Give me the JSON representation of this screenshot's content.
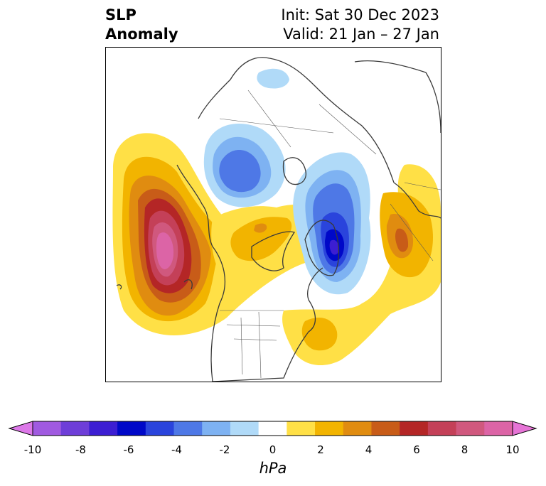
{
  "header": {
    "variable_line1": "SLP",
    "variable_line2": "Anomaly",
    "init": "Init: Sat 30 Dec 2023",
    "valid": "Valid: 21 Jan – 27 Jan"
  },
  "colorbar": {
    "units": "hPa",
    "ticks": [
      "-10",
      "-8",
      "-6",
      "-4",
      "-2",
      "0",
      "2",
      "4",
      "6",
      "8",
      "10"
    ],
    "colors": [
      "#dc78e8",
      "#a05ae0",
      "#6e3ed8",
      "#3c1ed2",
      "#0008c8",
      "#2a44dc",
      "#4e78e6",
      "#7eb2f2",
      "#b0daf8",
      "#ffffff",
      "#ffe046",
      "#f2b400",
      "#e08c10",
      "#c85c18",
      "#b42626",
      "#c44058",
      "#d0587e",
      "#dc64a6",
      "#e674d6"
    ]
  },
  "map": {
    "projection": "north-polar-stereographic",
    "features": [
      {
        "name": "north-pacific-high-anomaly",
        "sign": "positive",
        "peak_hPa": 10
      },
      {
        "name": "greenland-labrador-low-anomaly",
        "sign": "negative",
        "peak_hPa": -8
      },
      {
        "name": "siberia-low-anomaly",
        "sign": "negative",
        "peak_hPa": -4
      },
      {
        "name": "europe-high-anomaly",
        "sign": "positive",
        "peak_hPa": 5
      },
      {
        "name": "western-atlantic-high-anomaly",
        "sign": "positive",
        "peak_hPa": 3
      }
    ]
  }
}
